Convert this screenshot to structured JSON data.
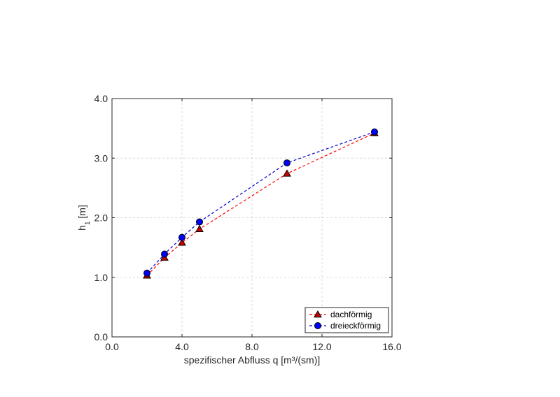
{
  "chart_data": {
    "type": "line",
    "title": "",
    "xlabel": "spezifischer Abfluss q [m³/(sm)]",
    "ylabel_main": "h",
    "ylabel_sub": "1",
    "ylabel_unit": " [m]",
    "xlim": [
      0,
      16
    ],
    "ylim": [
      0,
      4
    ],
    "xticks": [
      "0.0",
      "4.0",
      "8.0",
      "12.0",
      "16.0"
    ],
    "yticks": [
      "0.0",
      "1.0",
      "2.0",
      "3.0",
      "4.0"
    ],
    "grid": true,
    "legend_position": "bottom-right",
    "series": [
      {
        "name": "dachförmig",
        "marker": "triangle",
        "color": "#cc0000",
        "line_color": "#ff0000",
        "x": [
          2,
          3,
          4,
          5,
          10,
          15
        ],
        "y": [
          1.03,
          1.33,
          1.58,
          1.81,
          2.74,
          3.42
        ]
      },
      {
        "name": "dreieckförmig",
        "marker": "circle",
        "color": "#0000ff",
        "line_color": "#0000cc",
        "x": [
          2,
          3,
          4,
          5,
          10,
          15
        ],
        "y": [
          1.07,
          1.39,
          1.67,
          1.93,
          2.92,
          3.44
        ]
      }
    ]
  }
}
